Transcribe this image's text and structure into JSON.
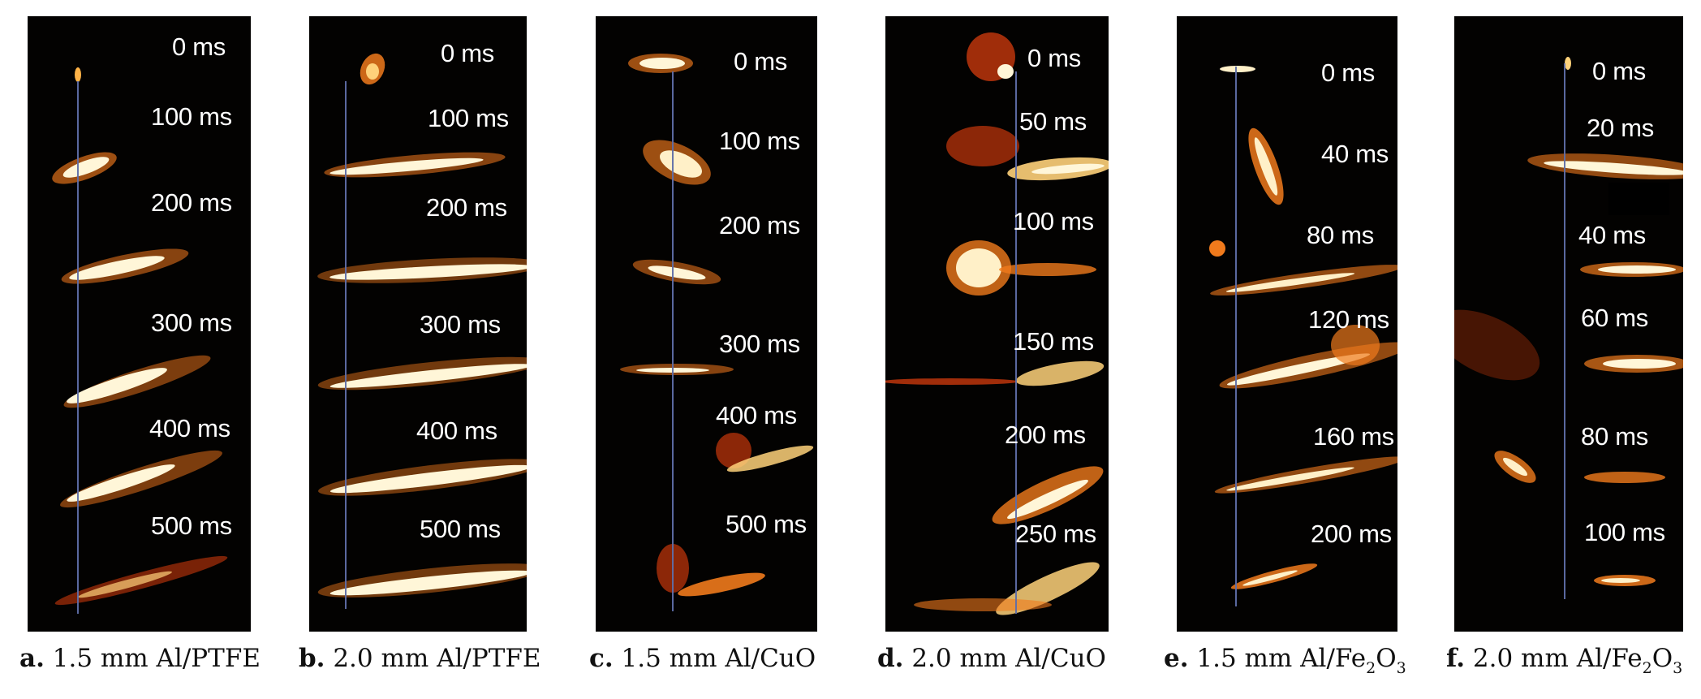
{
  "panels": [
    {
      "id": "a",
      "caption_letter": "a.",
      "caption_pre": "1.5 mm Al/PTFE",
      "caption_sub": "",
      "caption_post": "",
      "timestamps": [
        "0 ms",
        "100 ms",
        "200 ms",
        "300 ms",
        "400 ms",
        "500 ms"
      ]
    },
    {
      "id": "b",
      "caption_letter": "b.",
      "caption_pre": "2.0 mm Al/PTFE",
      "caption_sub": "",
      "caption_post": "",
      "timestamps": [
        "0 ms",
        "100 ms",
        "200 ms",
        "300 ms",
        "400 ms",
        "500 ms"
      ]
    },
    {
      "id": "c",
      "caption_letter": "c.",
      "caption_pre": "1.5 mm Al/CuO",
      "caption_sub": "",
      "caption_post": "",
      "timestamps": [
        "0 ms",
        "100 ms",
        "200 ms",
        "300 ms",
        "400 ms",
        "500 ms"
      ]
    },
    {
      "id": "d",
      "caption_letter": "d.",
      "caption_pre": "2.0 mm Al/CuO",
      "caption_sub": "",
      "caption_post": "",
      "timestamps": [
        "0 ms",
        "50 ms",
        "100 ms",
        "150 ms",
        "200 ms",
        "250 ms"
      ]
    },
    {
      "id": "e",
      "caption_letter": "e.",
      "caption_pre": "1.5 mm Al/Fe",
      "caption_sub": "2",
      "caption_post": "O",
      "caption_sub2": "3",
      "timestamps": [
        "0 ms",
        "40 ms",
        "80 ms",
        "120 ms",
        "160 ms",
        "200 ms"
      ]
    },
    {
      "id": "f",
      "caption_letter": "f.",
      "caption_pre": "2.0 mm Al/Fe",
      "caption_sub": "2",
      "caption_post": "O",
      "caption_sub2": "3",
      "timestamps": [
        "0 ms",
        "20 ms",
        "40 ms",
        "60 ms",
        "80 ms",
        "100 ms"
      ]
    }
  ],
  "colors": {
    "flame_core": "#fffbe8",
    "flame_mid": "#ffd27a",
    "flame_outer": "#f07a1c",
    "flame_red": "#c8380c",
    "rod": "#5f6ea8",
    "background": "#030201"
  }
}
